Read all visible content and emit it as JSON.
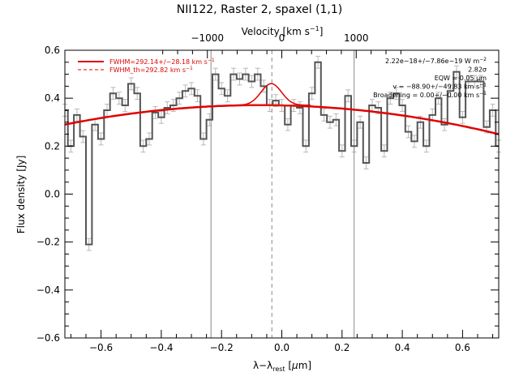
{
  "chart_data": {
    "type": "line",
    "title": "NII122, Raster 2, spaxel (1,1)",
    "xlabel_main": "λ−λ",
    "xlabel_sub": "rest",
    "xlabel_unit_open": " [",
    "xlabel_unit_mu": "μ",
    "xlabel_unit_close": "m]",
    "top_xlabel_main": "Velocity [km s",
    "top_xlabel_sup": "−1",
    "top_xlabel_close": "]",
    "ylabel": "Flux density [Jy]",
    "xlim": [
      -0.72,
      0.72
    ],
    "ylim": [
      -0.6,
      0.6
    ],
    "xticks": [
      -0.6,
      -0.4,
      -0.2,
      0.0,
      0.2,
      0.4,
      0.6
    ],
    "xtick_labels": [
      "−0.6",
      "−0.4",
      "−0.2",
      "0.0",
      "0.2",
      "0.4",
      "0.6"
    ],
    "yticks": [
      -0.6,
      -0.4,
      -0.2,
      0.0,
      0.2,
      0.4,
      0.6
    ],
    "ytick_labels": [
      "−0.6",
      "−0.4",
      "−0.2",
      "0.0",
      "0.2",
      "0.4",
      "0.6"
    ],
    "top_ticks_um": [
      -0.247,
      0.0,
      0.247
    ],
    "top_tick_labels": [
      "−1000",
      "0",
      "1000"
    ],
    "vlines_um": [
      -0.235,
      0.24
    ],
    "vline_dashed_um": -0.033,
    "spectrum": {
      "x": [
        -0.72,
        -0.7,
        -0.68,
        -0.66,
        -0.64,
        -0.62,
        -0.6,
        -0.58,
        -0.56,
        -0.54,
        -0.52,
        -0.5,
        -0.48,
        -0.46,
        -0.44,
        -0.42,
        -0.4,
        -0.38,
        -0.36,
        -0.34,
        -0.32,
        -0.3,
        -0.28,
        -0.26,
        -0.24,
        -0.22,
        -0.2,
        -0.18,
        -0.16,
        -0.14,
        -0.12,
        -0.1,
        -0.08,
        -0.06,
        -0.04,
        -0.02,
        0.0,
        0.02,
        0.04,
        0.06,
        0.08,
        0.1,
        0.12,
        0.14,
        0.16,
        0.18,
        0.2,
        0.22,
        0.24,
        0.26,
        0.28,
        0.3,
        0.32,
        0.34,
        0.36,
        0.38,
        0.4,
        0.42,
        0.44,
        0.46,
        0.48,
        0.5,
        0.52,
        0.54,
        0.56,
        0.58,
        0.6,
        0.62,
        0.64,
        0.66,
        0.68,
        0.7,
        0.72
      ],
      "y": [
        0.35,
        0.2,
        0.33,
        0.24,
        -0.21,
        0.29,
        0.23,
        0.35,
        0.42,
        0.4,
        0.37,
        0.46,
        0.42,
        0.2,
        0.23,
        0.34,
        0.32,
        0.36,
        0.37,
        0.4,
        0.43,
        0.44,
        0.41,
        0.23,
        0.31,
        0.5,
        0.44,
        0.41,
        0.5,
        0.48,
        0.5,
        0.47,
        0.5,
        0.45,
        0.37,
        0.39,
        0.37,
        0.29,
        0.37,
        0.36,
        0.2,
        0.42,
        0.55,
        0.33,
        0.3,
        0.31,
        0.18,
        0.41,
        0.2,
        0.3,
        0.13,
        0.37,
        0.36,
        0.18,
        0.4,
        0.42,
        0.37,
        0.26,
        0.22,
        0.3,
        0.2,
        0.33,
        0.4,
        0.29,
        0.43,
        0.51,
        0.32,
        0.47,
        0.47,
        0.47,
        0.28,
        0.35,
        0.2
      ],
      "err": 0.025
    },
    "continuum": {
      "y_at_xmin": 0.29,
      "y_at_x0": 0.37,
      "y_at_xmax": 0.25
    },
    "line_fit": {
      "center": -0.035,
      "amplitude": 0.09,
      "fwhm": 0.08
    },
    "legend": [
      {
        "label": "FWHM=292.14+/−28.18 km s",
        "sup": "−1",
        "style": "solid",
        "color": "#e00000"
      },
      {
        "label": "FWHM_th=292.82 km s",
        "sup": "−1",
        "style": "dashed",
        "color": "#e00000"
      }
    ],
    "annotations": [
      {
        "main": "2.22e−18+/−7.86e−19 W m",
        "sup": "−2"
      },
      {
        "main": "2.82σ",
        "sup": ""
      },
      {
        "main": "EQW = 0.05 μm",
        "sup": ""
      },
      {
        "main": "v = −88.90+/−49.83 km s",
        "sup": "−1"
      },
      {
        "main": "Broadening = 0.00+/−0.00 km s",
        "sup": "−1"
      }
    ],
    "colors": {
      "spectrum": "#555555",
      "errorbar": "#b8b8b8",
      "fit": "#e00000",
      "model": "#e03020",
      "vline": "#888888"
    }
  }
}
